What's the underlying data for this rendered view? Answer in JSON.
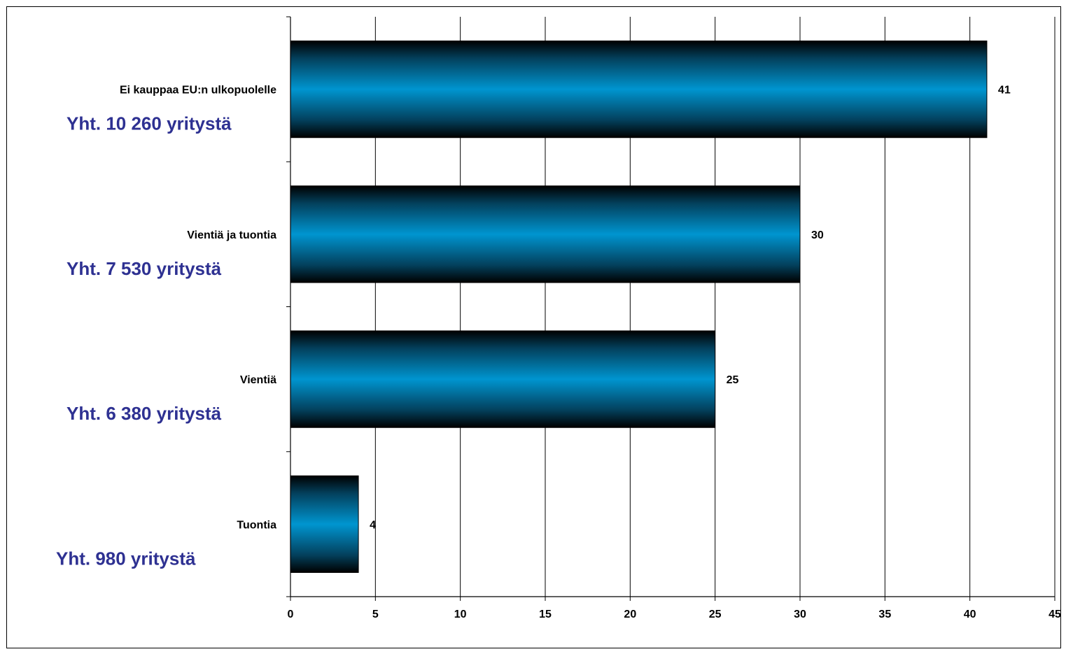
{
  "chart_data": {
    "type": "bar",
    "orientation": "horizontal",
    "categories": [
      "Ei kauppaa EU:n ulkopuolelle",
      "Vientiä ja tuontia",
      "Vientiä",
      "Tuontia"
    ],
    "values": [
      41,
      30,
      25,
      4
    ],
    "data_labels": [
      "41",
      "30",
      "25",
      "4"
    ],
    "annotations": [
      "Yht. 10 260 yritystä",
      "Yht. 7 530 yritystä",
      "Yht. 6 380 yritystä",
      "Yht. 980 yritystä"
    ],
    "x_ticks": [
      "0",
      "5",
      "10",
      "15",
      "20",
      "25",
      "30",
      "35",
      "40",
      "45"
    ],
    "xlim": [
      0,
      45
    ],
    "grid": true,
    "colors": {
      "bar_center": "#0095d0",
      "bar_edge": "#000000",
      "annotation": "#2e3192",
      "grid": "#000000"
    }
  }
}
